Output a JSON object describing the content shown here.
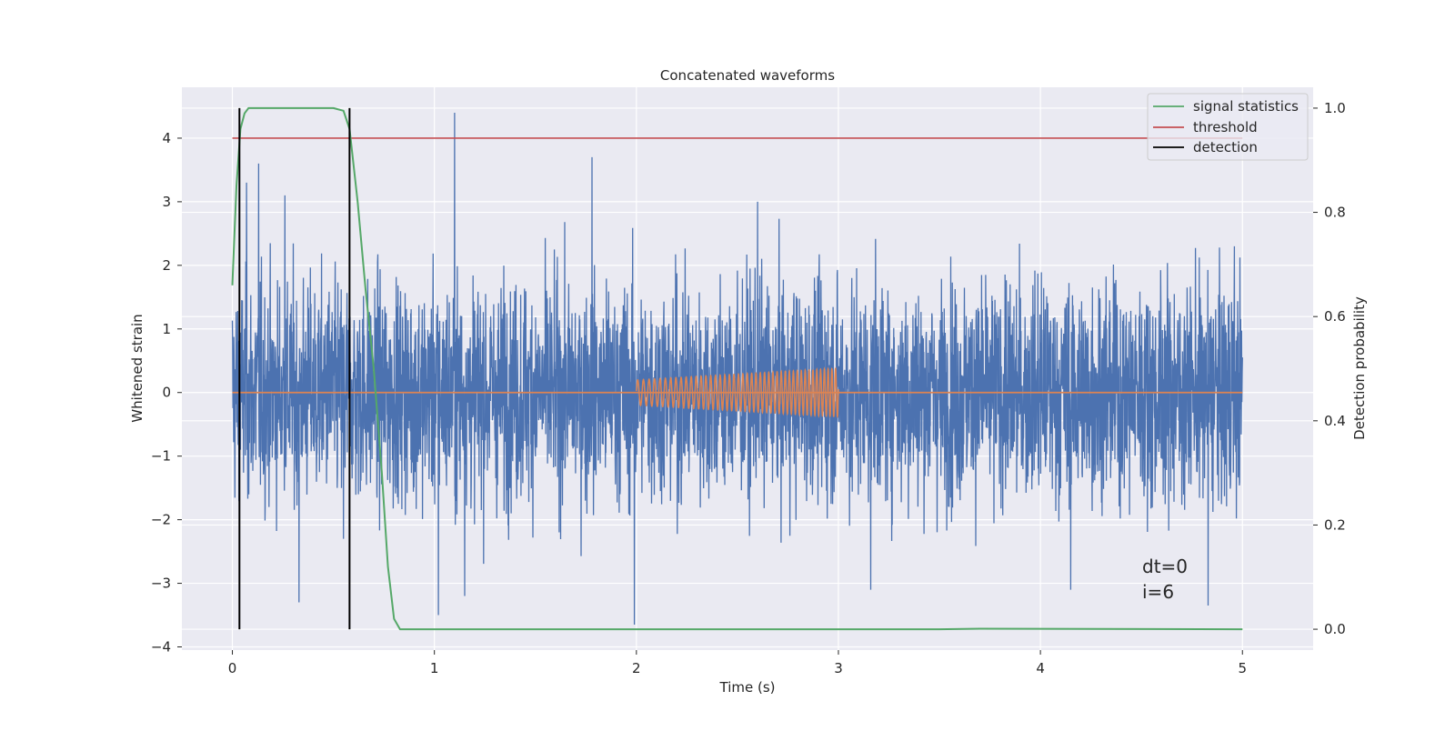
{
  "chart_data": {
    "type": "line",
    "title": "Concatenated waveforms",
    "xlabel": "Time (s)",
    "ylabel": "Whitened strain",
    "ylabel_right": "Detection probability",
    "xlim": [
      -0.25,
      5.35
    ],
    "ylim": [
      -4.05,
      4.8
    ],
    "ylim_right": [
      -0.04,
      1.04
    ],
    "xticks": [
      0,
      1,
      2,
      3,
      4,
      5
    ],
    "xtick_labels": [
      "0",
      "1",
      "2",
      "3",
      "4",
      "5"
    ],
    "yticks": [
      4,
      3,
      2,
      1,
      0,
      -1,
      -2,
      -3,
      -4
    ],
    "ytick_labels": [
      "4",
      "3",
      "2",
      "1",
      "0",
      "−1",
      "−2",
      "−3",
      "−4"
    ],
    "yticks_right": [
      1.0,
      0.8,
      0.6,
      0.4,
      0.2,
      0.0
    ],
    "ytick_labels_right": [
      "1.0",
      "0.8",
      "0.6",
      "0.4",
      "0.2",
      "0.0"
    ],
    "grid": true,
    "legend_position": "top-right",
    "series": [
      {
        "role": "noisy strain",
        "axis": "left",
        "color": "#4c72b0",
        "x_range": [
          0,
          5
        ],
        "typical_amplitude": 0.85,
        "sample_spikes": [
          {
            "x": 0.07,
            "y": 3.3
          },
          {
            "x": 0.13,
            "y": 3.6
          },
          {
            "x": 0.26,
            "y": 3.1
          },
          {
            "x": 0.33,
            "y": -3.3
          },
          {
            "x": 0.55,
            "y": -2.3
          },
          {
            "x": 1.02,
            "y": -3.5
          },
          {
            "x": 1.1,
            "y": 4.4
          },
          {
            "x": 1.15,
            "y": -3.2
          },
          {
            "x": 1.78,
            "y": 3.7
          },
          {
            "x": 1.99,
            "y": -3.65
          },
          {
            "x": 2.6,
            "y": 3.0
          },
          {
            "x": 3.16,
            "y": -3.1
          },
          {
            "x": 4.15,
            "y": -3.1
          },
          {
            "x": 4.83,
            "y": -3.35
          },
          {
            "x": 4.96,
            "y": 2.3
          }
        ]
      },
      {
        "role": "injected signal",
        "axis": "left",
        "color": "#dd8452",
        "x_range": [
          2,
          3
        ],
        "amplitude_start": 0.2,
        "amplitude_end": 0.38,
        "freq_start_hz": 35,
        "freq_end_hz": 55
      },
      {
        "name": "signal statistics",
        "axis": "right",
        "color": "#55a868",
        "x": [
          0.0,
          0.02,
          0.04,
          0.06,
          0.08,
          0.1,
          0.5,
          0.55,
          0.58,
          0.62,
          0.66,
          0.7,
          0.74,
          0.77,
          0.8,
          0.83,
          0.9,
          3.5,
          3.7,
          5.0
        ],
        "y": [
          0.66,
          0.85,
          0.96,
          0.99,
          1.0,
          1.0,
          1.0,
          0.995,
          0.96,
          0.82,
          0.65,
          0.5,
          0.3,
          0.12,
          0.02,
          0.0,
          0.0,
          0.0,
          0.001,
          0.0
        ]
      },
      {
        "name": "threshold",
        "axis": "left",
        "color": "#c44e52",
        "x": [
          0,
          5
        ],
        "y": [
          4,
          4
        ]
      },
      {
        "name": "detection",
        "axis": "right",
        "color": "#000000",
        "vlines_x": [
          0.035,
          0.58
        ],
        "y_range": [
          0.0,
          1.0
        ]
      }
    ],
    "annotations": [
      "dt=0",
      "i=6"
    ]
  }
}
